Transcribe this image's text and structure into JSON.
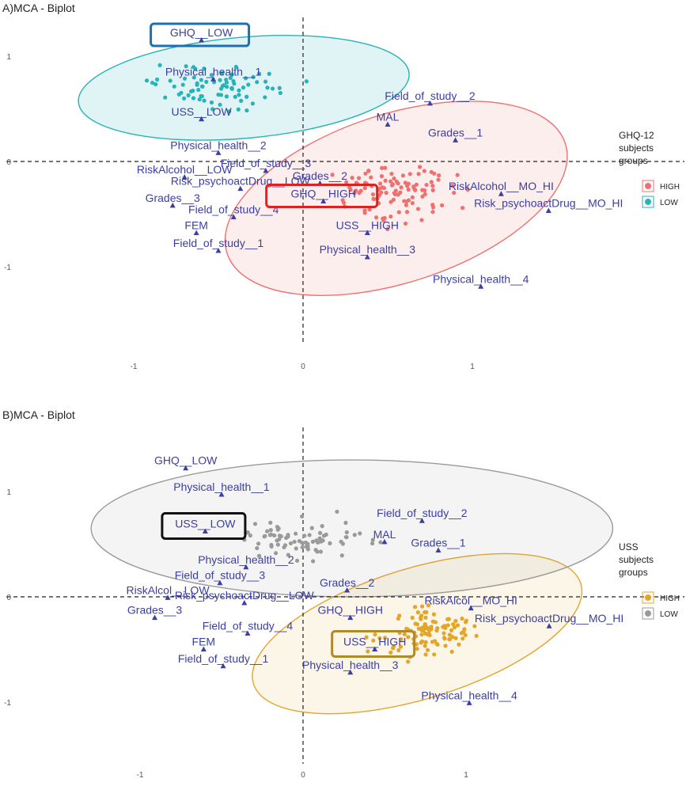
{
  "chart_data": [
    {
      "type": "scatter",
      "title": "A)MCA - Biplot",
      "xlim": [
        -1.0,
        1.0
      ],
      "ylim": [
        -1.0,
        1.0
      ],
      "x_ticks": [
        "-1",
        "0",
        "1"
      ],
      "y_ticks": [
        "1",
        "0",
        "-1"
      ],
      "legend": {
        "title": [
          "GHQ-12",
          "subjects",
          "groups"
        ],
        "entries": [
          {
            "name": "HIGH",
            "color": "#f07070"
          },
          {
            "name": "LOW",
            "color": "#27b3b8"
          }
        ],
        "placement": "right"
      },
      "variables": [
        {
          "label": "GHQ__LOW",
          "x": -0.6,
          "y": 1.15
        },
        {
          "label": "Physical_health__1",
          "x": -0.53,
          "y": 0.78
        },
        {
          "label": "USS__LOW",
          "x": -0.6,
          "y": 0.4
        },
        {
          "label": "Field_of_study__2",
          "x": 0.75,
          "y": 0.55
        },
        {
          "label": "MAL",
          "x": 0.5,
          "y": 0.35
        },
        {
          "label": "Physical_health__2",
          "x": -0.5,
          "y": 0.08
        },
        {
          "label": "Grades__1",
          "x": 0.9,
          "y": 0.2
        },
        {
          "label": "RiskAlcohol__LOW",
          "x": -0.7,
          "y": -0.15
        },
        {
          "label": "Field_of_study__3",
          "x": -0.22,
          "y": -0.09
        },
        {
          "label": "Grades__2",
          "x": 0.1,
          "y": -0.21
        },
        {
          "label": "Risk_psychoactDrug__LOW",
          "x": -0.37,
          "y": -0.26
        },
        {
          "label": "GHQ__HIGH",
          "x": 0.12,
          "y": -0.38
        },
        {
          "label": "RiskAlcohol__MO_HI",
          "x": 1.17,
          "y": -0.31
        },
        {
          "label": "Grades__3",
          "x": -0.77,
          "y": -0.42
        },
        {
          "label": "Field_of_study__4",
          "x": -0.41,
          "y": -0.53
        },
        {
          "label": "Risk_psychoactDrug__MO_HI",
          "x": 1.45,
          "y": -0.47
        },
        {
          "label": "FEM",
          "x": -0.63,
          "y": -0.68
        },
        {
          "label": "USS__HIGH",
          "x": 0.38,
          "y": -0.68
        },
        {
          "label": "Field_of_study__1",
          "x": -0.5,
          "y": -0.85
        },
        {
          "label": "Physical_health__3",
          "x": 0.38,
          "y": -0.91
        },
        {
          "label": "Physical_health__4",
          "x": 1.05,
          "y": -1.19
        }
      ]
    },
    {
      "type": "scatter",
      "title": "B)MCA - Biplot",
      "xlim": [
        -1.0,
        1.0
      ],
      "ylim": [
        -1.0,
        1.0
      ],
      "x_ticks": [
        "-1",
        "0",
        "1"
      ],
      "y_ticks": [
        "1",
        "0",
        "-1"
      ],
      "legend": {
        "title": [
          "USS",
          "subjects",
          "groups"
        ],
        "entries": [
          {
            "name": "HIGH",
            "color": "#e3a52a"
          },
          {
            "name": "LOW",
            "color": "#9a9a9a"
          }
        ],
        "placement": "right"
      },
      "variables": [
        {
          "label": "GHQ__LOW",
          "x": -0.72,
          "y": 1.22
        },
        {
          "label": "Physical_health__1",
          "x": -0.5,
          "y": 0.97
        },
        {
          "label": "USS__LOW",
          "x": -0.6,
          "y": 0.62
        },
        {
          "label": "Field_of_study__2",
          "x": 0.73,
          "y": 0.72
        },
        {
          "label": "MAL",
          "x": 0.5,
          "y": 0.52
        },
        {
          "label": "Grades__1",
          "x": 0.83,
          "y": 0.44
        },
        {
          "label": "Physical_health__2",
          "x": -0.35,
          "y": 0.28
        },
        {
          "label": "Field_of_study__3",
          "x": -0.51,
          "y": 0.13
        },
        {
          "label": "Grades__2",
          "x": 0.27,
          "y": 0.06
        },
        {
          "label": "RiskAlcol__LOW",
          "x": -0.83,
          "y": -0.01
        },
        {
          "label": "Risk_psychoactDrug__LOW",
          "x": -0.36,
          "y": -0.06
        },
        {
          "label": "RiskAlcol__MO_HI",
          "x": 1.03,
          "y": -0.11
        },
        {
          "label": "Grades__3",
          "x": -0.91,
          "y": -0.2
        },
        {
          "label": "GHQ__HIGH",
          "x": 0.29,
          "y": -0.2
        },
        {
          "label": "Risk_psychoactDrug__MO_HI",
          "x": 1.51,
          "y": -0.28
        },
        {
          "label": "Field_of_study__4",
          "x": -0.34,
          "y": -0.35
        },
        {
          "label": "FEM",
          "x": -0.61,
          "y": -0.5
        },
        {
          "label": "USS__HIGH",
          "x": 0.44,
          "y": -0.5
        },
        {
          "label": "Field_of_study__1",
          "x": -0.49,
          "y": -0.66
        },
        {
          "label": "Physical_health__3",
          "x": 0.29,
          "y": -0.72
        },
        {
          "label": "Physical_health__4",
          "x": 1.02,
          "y": -1.01
        }
      ]
    }
  ]
}
